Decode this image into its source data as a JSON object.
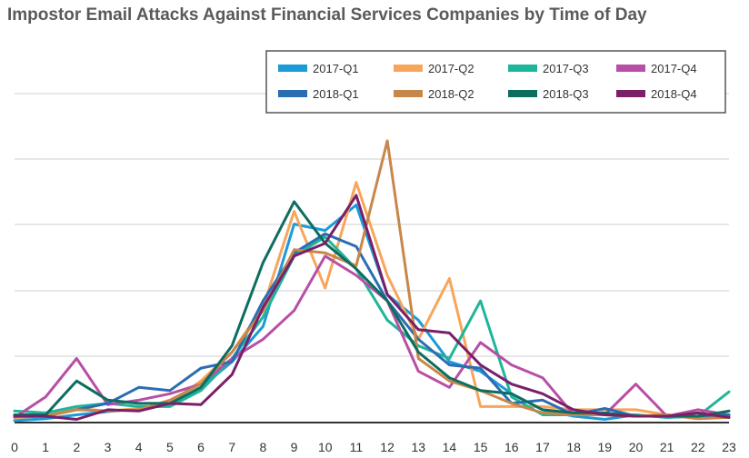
{
  "chart_data": {
    "type": "line",
    "title": "Impostor Email Attacks Against Financial Services Companies by Time of Day",
    "xlabel": "",
    "ylabel": "",
    "x": [
      0,
      1,
      2,
      3,
      4,
      5,
      6,
      7,
      8,
      9,
      10,
      11,
      12,
      13,
      14,
      15,
      16,
      17,
      18,
      19,
      20,
      21,
      22,
      23
    ],
    "ylim": [
      0,
      0.44
    ],
    "grid": true,
    "legend_position": "top-right",
    "series": [
      {
        "name": "2017-Q1",
        "color": "#1a9bd7",
        "values": [
          0.003,
          0.006,
          0.012,
          0.017,
          0.022,
          0.027,
          0.055,
          0.095,
          0.15,
          0.31,
          0.3,
          0.34,
          0.2,
          0.16,
          0.095,
          0.08,
          0.045,
          0.02,
          0.01,
          0.005,
          0.012,
          0.008,
          0.01,
          0.01
        ]
      },
      {
        "name": "2017-Q2",
        "color": "#f7a55a",
        "values": [
          0.012,
          0.012,
          0.022,
          0.018,
          0.022,
          0.03,
          0.065,
          0.11,
          0.18,
          0.33,
          0.21,
          0.375,
          0.23,
          0.13,
          0.225,
          0.025,
          0.025,
          0.025,
          0.02,
          0.02,
          0.02,
          0.012,
          0.01,
          0.012
        ]
      },
      {
        "name": "2017-Q3",
        "color": "#1fb59b",
        "values": [
          0.018,
          0.015,
          0.025,
          0.03,
          0.025,
          0.025,
          0.05,
          0.1,
          0.165,
          0.26,
          0.29,
          0.24,
          0.16,
          0.12,
          0.1,
          0.19,
          0.04,
          0.012,
          0.012,
          0.012,
          0.012,
          0.008,
          0.01,
          0.048
        ]
      },
      {
        "name": "2017-Q4",
        "color": "#b84fa6",
        "values": [
          0.008,
          0.04,
          0.1,
          0.028,
          0.035,
          0.045,
          0.06,
          0.1,
          0.13,
          0.175,
          0.26,
          0.23,
          0.19,
          0.08,
          0.055,
          0.125,
          0.09,
          0.07,
          0.012,
          0.012,
          0.06,
          0.01,
          0.02,
          0.012
        ]
      },
      {
        "name": "2018-Q1",
        "color": "#2b6db3",
        "values": [
          0.01,
          0.01,
          0.02,
          0.03,
          0.055,
          0.05,
          0.085,
          0.095,
          0.19,
          0.265,
          0.295,
          0.275,
          0.19,
          0.13,
          0.09,
          0.085,
          0.03,
          0.035,
          0.012,
          0.022,
          0.01,
          0.01,
          0.01,
          0.012
        ]
      },
      {
        "name": "2018-Q2",
        "color": "#c8874a",
        "values": [
          0.008,
          0.01,
          0.02,
          0.018,
          0.02,
          0.035,
          0.06,
          0.11,
          0.175,
          0.27,
          0.265,
          0.245,
          0.44,
          0.1,
          0.065,
          0.05,
          0.03,
          0.015,
          0.012,
          0.012,
          0.01,
          0.012,
          0.006,
          0.008
        ]
      },
      {
        "name": "2018-Q3",
        "color": "#0d6d5f",
        "values": [
          0.012,
          0.012,
          0.065,
          0.035,
          0.03,
          0.03,
          0.055,
          0.12,
          0.25,
          0.345,
          0.28,
          0.24,
          0.19,
          0.11,
          0.07,
          0.05,
          0.045,
          0.02,
          0.015,
          0.015,
          0.01,
          0.01,
          0.01,
          0.018
        ]
      },
      {
        "name": "2018-Q4",
        "color": "#7a1f68",
        "values": [
          0.01,
          0.01,
          0.005,
          0.02,
          0.018,
          0.03,
          0.028,
          0.075,
          0.18,
          0.26,
          0.28,
          0.355,
          0.2,
          0.145,
          0.14,
          0.09,
          0.06,
          0.045,
          0.02,
          0.012,
          0.01,
          0.01,
          0.015,
          0.008
        ]
      }
    ]
  }
}
